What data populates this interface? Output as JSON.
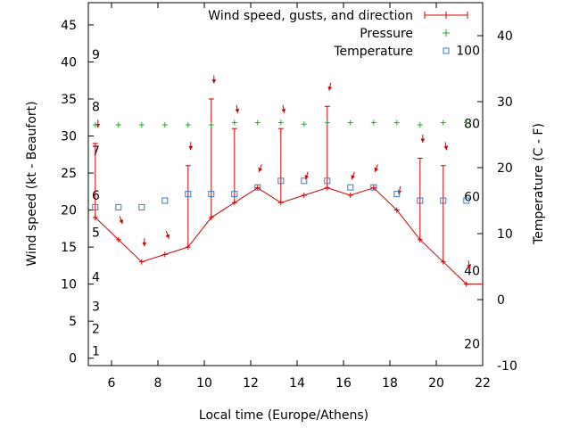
{
  "colors": {
    "wind": "#cc0000",
    "pressure": "#22aa22",
    "temperature": "#2a7fd4"
  },
  "chart_data": {
    "type": "line",
    "xlabel": "Local time (Europe/Athens)",
    "ylabel": "Wind speed (kt - Beaufort)",
    "y2label": "Temperature (C - F)",
    "xlim": [
      5,
      22
    ],
    "ylim": [
      -1,
      48
    ],
    "y2lim": [
      -10,
      45
    ],
    "x_ticks": [
      6,
      8,
      10,
      12,
      14,
      16,
      18,
      20,
      22
    ],
    "y_ticks": [
      0,
      5,
      10,
      15,
      20,
      25,
      30,
      35,
      40,
      45
    ],
    "y2_ticks": [
      -10,
      0,
      10,
      20,
      30,
      40
    ],
    "beaufort_ticks": [
      {
        "label": "1",
        "kt": 1
      },
      {
        "label": "2",
        "kt": 4
      },
      {
        "label": "3",
        "kt": 7
      },
      {
        "label": "4",
        "kt": 11
      },
      {
        "label": "5",
        "kt": 17
      },
      {
        "label": "6",
        "kt": 22
      },
      {
        "label": "7",
        "kt": 28
      },
      {
        "label": "8",
        "kt": 34
      },
      {
        "label": "9",
        "kt": 41
      }
    ],
    "fahrenheit_ticks": [
      {
        "label": "20",
        "c": -6.7
      },
      {
        "label": "40",
        "c": 4.4
      },
      {
        "label": "60",
        "c": 15.6
      },
      {
        "label": "80",
        "c": 26.7
      },
      {
        "label": "100",
        "c": 37.8
      }
    ],
    "legend": [
      "Wind speed, gusts, and direction",
      "Pressure",
      "Temperature"
    ],
    "legend_position": "top-right",
    "series": [
      {
        "name": "Wind speed, gusts, and direction",
        "x": [
          5.3,
          6.3,
          7.3,
          8.3,
          9.3,
          10.3,
          11.3,
          12.3,
          13.3,
          14.3,
          15.3,
          16.3,
          17.3,
          18.3,
          19.3,
          20.3,
          21.3,
          22
        ],
        "speed": [
          19,
          16,
          13,
          14,
          15,
          19,
          21,
          23,
          21,
          22,
          23,
          22,
          23,
          20,
          16,
          13,
          10,
          10
        ],
        "gust": [
          29,
          null,
          null,
          null,
          26,
          35,
          31,
          null,
          31,
          null,
          34,
          null,
          null,
          null,
          27,
          26,
          null,
          null
        ],
        "direction_deg": [
          180,
          160,
          180,
          160,
          180,
          180,
          170,
          200,
          170,
          200,
          190,
          200,
          200,
          190,
          180,
          170,
          170,
          null
        ]
      },
      {
        "name": "Pressure",
        "x": [
          5.3,
          6.3,
          7.3,
          8.3,
          9.3,
          10.3,
          11.3,
          12.3,
          13.3,
          14.3,
          15.3,
          16.3,
          17.3,
          18.3,
          19.3,
          20.3,
          21.3
        ],
        "y_kt": [
          31.5,
          31.5,
          31.5,
          31.5,
          31.5,
          31.5,
          31.8,
          31.8,
          31.8,
          31.6,
          31.8,
          31.8,
          31.8,
          31.8,
          31.5,
          31.8,
          31.8
        ]
      },
      {
        "name": "Temperature",
        "x": [
          5.3,
          6.3,
          7.3,
          8.3,
          9.3,
          10.3,
          11.3,
          12.3,
          13.3,
          14.3,
          15.3,
          16.3,
          17.3,
          18.3,
          19.3,
          20.3,
          21.3
        ],
        "y_c": [
          14,
          14,
          14,
          15,
          16,
          16,
          16,
          17,
          18,
          18,
          18,
          17,
          17,
          16,
          15,
          15,
          15
        ]
      }
    ]
  }
}
